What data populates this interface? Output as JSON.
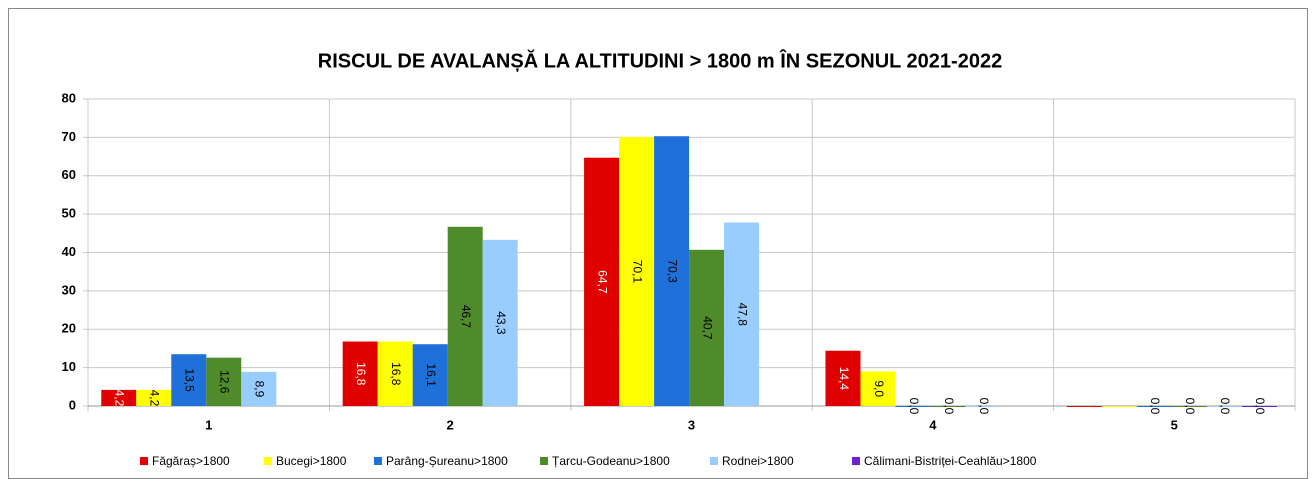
{
  "chart_data": {
    "type": "bar",
    "title": "RISCUL DE AVALANȘĂ LA ALTITUDINI > 1800 m ÎN SEZONUL 2021-2022",
    "categories": [
      "1",
      "2",
      "3",
      "4",
      "5"
    ],
    "series": [
      {
        "name": "Făgăraș>1800",
        "color": "#e00000",
        "values": [
          4.2,
          16.8,
          64.7,
          14.4,
          0
        ],
        "value_labels": [
          "4,2",
          "16,8",
          "64,7",
          "14,4",
          null
        ]
      },
      {
        "name": "Bucegi>1800",
        "color": "#ffff00",
        "values": [
          4.2,
          16.8,
          70.1,
          9.0,
          0
        ],
        "value_labels": [
          "4,2",
          "16,8",
          "70,1",
          "9,0",
          null
        ]
      },
      {
        "name": "Parâng-Șureanu>1800",
        "color": "#1f70d8",
        "values": [
          13.5,
          16.1,
          70.3,
          0.0,
          0.0
        ],
        "value_labels": [
          "13,5",
          "16,1",
          "70,3",
          "0,0",
          "0,0"
        ]
      },
      {
        "name": "Țarcu-Godeanu>1800",
        "color": "#4f8a2b",
        "values": [
          12.6,
          46.7,
          40.7,
          0.0,
          0.0
        ],
        "value_labels": [
          "12,6",
          "46,7",
          "40,7",
          "0,0",
          "0,0"
        ]
      },
      {
        "name": "Rodnei>1800",
        "color": "#99ccff",
        "values": [
          8.9,
          43.3,
          47.8,
          0.0,
          0.0
        ],
        "value_labels": [
          "8,9",
          "43,3",
          "47,8",
          "0,0",
          "0,0"
        ]
      },
      {
        "name": "Călimani-Bistriței-Ceahlău>1800",
        "color": "#6a22d0",
        "values": [
          null,
          null,
          null,
          null,
          0.0
        ],
        "value_labels": [
          null,
          null,
          null,
          null,
          "0,0"
        ]
      }
    ],
    "ylim": [
      0,
      80
    ],
    "yticks": [
      0,
      10,
      20,
      30,
      40,
      50,
      60,
      70,
      80
    ],
    "grid": true
  }
}
